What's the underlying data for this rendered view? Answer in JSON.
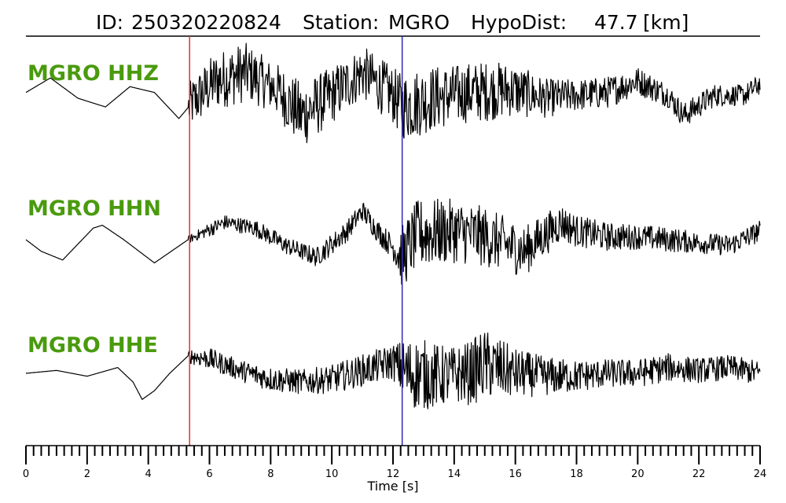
{
  "title": {
    "id_label": "ID:",
    "id": "250320220824",
    "station_label": "Station:",
    "station": "MGRO",
    "hypodist_label": "HypoDist:",
    "hypodist": "47.7",
    "hypodist_unit": "[km]"
  },
  "chart_data": {
    "type": "line",
    "xlabel": "Time [s]",
    "xlim": [
      0,
      24
    ],
    "xticks": [
      0,
      2,
      4,
      6,
      8,
      10,
      12,
      14,
      16,
      18,
      20,
      22,
      24
    ],
    "minor_tick_step": 0.25,
    "p_pick_time": 5.35,
    "s_pick_time": 12.3,
    "p_pick_color": "#e8312a",
    "s_pick_color": "#2b2bb8",
    "label_color": "#4a9a0e",
    "series": [
      {
        "name": "MGRO HHZ",
        "envelope": [
          [
            0,
            0.3
          ],
          [
            1,
            0.2
          ],
          [
            2,
            0.25
          ],
          [
            3,
            0.15
          ],
          [
            4,
            0.1
          ],
          [
            5,
            0.2
          ],
          [
            5.4,
            0.7
          ],
          [
            6,
            0.8
          ],
          [
            7,
            0.85
          ],
          [
            8,
            0.7
          ],
          [
            9,
            0.95
          ],
          [
            10,
            0.8
          ],
          [
            11,
            0.75
          ],
          [
            12,
            0.8
          ],
          [
            12.5,
            1.0
          ],
          [
            13,
            0.95
          ],
          [
            14,
            0.85
          ],
          [
            15,
            0.85
          ],
          [
            16,
            0.75
          ],
          [
            17,
            0.55
          ],
          [
            18,
            0.45
          ],
          [
            19,
            0.45
          ],
          [
            20,
            0.4
          ],
          [
            21,
            0.35
          ],
          [
            22,
            0.35
          ],
          [
            23,
            0.3
          ],
          [
            24,
            0.3
          ]
        ],
        "baseline": [
          [
            0,
            0.2
          ],
          [
            0.8,
            0.7
          ],
          [
            1.7,
            0.0
          ],
          [
            2.6,
            -0.3
          ],
          [
            3.4,
            0.4
          ],
          [
            4.2,
            0.2
          ],
          [
            5,
            -0.7
          ],
          [
            5.4,
            -0.2
          ],
          [
            6.2,
            0.6
          ],
          [
            7.2,
            0.9
          ],
          [
            8.2,
            0.3
          ],
          [
            9,
            -0.6
          ],
          [
            10,
            0.1
          ],
          [
            11,
            0.9
          ],
          [
            12,
            0.1
          ],
          [
            12.3,
            -0.3
          ],
          [
            13.3,
            0.0
          ],
          [
            14.5,
            0.2
          ],
          [
            15.8,
            0.3
          ],
          [
            17,
            0.0
          ],
          [
            18,
            0.1
          ],
          [
            19,
            0.2
          ],
          [
            20,
            0.6
          ],
          [
            21,
            0.1
          ],
          [
            21.5,
            -0.6
          ],
          [
            22.5,
            0.1
          ],
          [
            23.5,
            0.1
          ],
          [
            24,
            0.5
          ]
        ]
      },
      {
        "name": "MGRO HHN",
        "envelope": [
          [
            0,
            0.05
          ],
          [
            5,
            0.05
          ],
          [
            5.3,
            0.1
          ],
          [
            6,
            0.2
          ],
          [
            7,
            0.22
          ],
          [
            8,
            0.25
          ],
          [
            9,
            0.25
          ],
          [
            10,
            0.3
          ],
          [
            11,
            0.3
          ],
          [
            12,
            0.35
          ],
          [
            12.3,
            0.9
          ],
          [
            13,
            1.0
          ],
          [
            14,
            0.9
          ],
          [
            15,
            0.85
          ],
          [
            16,
            0.75
          ],
          [
            17,
            0.6
          ],
          [
            18,
            0.45
          ],
          [
            19,
            0.4
          ],
          [
            20,
            0.35
          ],
          [
            21,
            0.35
          ],
          [
            22,
            0.3
          ],
          [
            23,
            0.3
          ],
          [
            24,
            0.3
          ]
        ],
        "baseline": [
          [
            0,
            0.0
          ],
          [
            0.5,
            -0.4
          ],
          [
            1.2,
            -0.7
          ],
          [
            2.2,
            0.4
          ],
          [
            2.5,
            0.5
          ],
          [
            3.2,
            0.0
          ],
          [
            4.2,
            -0.8
          ],
          [
            5.3,
            0.0
          ],
          [
            6.5,
            0.6
          ],
          [
            7.5,
            0.4
          ],
          [
            8.5,
            -0.2
          ],
          [
            9.5,
            -0.6
          ],
          [
            10.5,
            0.3
          ],
          [
            11,
            1.0
          ],
          [
            11.5,
            0.3
          ],
          [
            12.3,
            -0.6
          ],
          [
            12.8,
            0.2
          ],
          [
            14,
            0.3
          ],
          [
            15,
            0.1
          ],
          [
            16.3,
            -0.4
          ],
          [
            17,
            0.2
          ],
          [
            17.5,
            0.6
          ],
          [
            18,
            0.3
          ],
          [
            19,
            0.1
          ],
          [
            20,
            0.1
          ],
          [
            21,
            0.0
          ],
          [
            22,
            -0.1
          ],
          [
            23,
            -0.2
          ],
          [
            24,
            0.3
          ]
        ]
      },
      {
        "name": "MGRO HHE",
        "envelope": [
          [
            0,
            0.05
          ],
          [
            5,
            0.05
          ],
          [
            5.3,
            0.2
          ],
          [
            6,
            0.3
          ],
          [
            7,
            0.3
          ],
          [
            8,
            0.35
          ],
          [
            9,
            0.35
          ],
          [
            10,
            0.4
          ],
          [
            11,
            0.45
          ],
          [
            12,
            0.5
          ],
          [
            12.5,
            1.0
          ],
          [
            13,
            1.0
          ],
          [
            14,
            0.8
          ],
          [
            15,
            1.0
          ],
          [
            16,
            0.7
          ],
          [
            17,
            0.55
          ],
          [
            18,
            0.45
          ],
          [
            19,
            0.4
          ],
          [
            20,
            0.4
          ],
          [
            21,
            0.4
          ],
          [
            22,
            0.35
          ],
          [
            23,
            0.35
          ],
          [
            24,
            0.35
          ]
        ],
        "baseline": [
          [
            0,
            0.0
          ],
          [
            1,
            0.1
          ],
          [
            2,
            -0.1
          ],
          [
            3,
            0.2
          ],
          [
            3.5,
            -0.3
          ],
          [
            3.8,
            -0.9
          ],
          [
            4.2,
            -0.6
          ],
          [
            4.7,
            0.0
          ],
          [
            5.3,
            0.6
          ],
          [
            6,
            0.5
          ],
          [
            7,
            0.1
          ],
          [
            8,
            -0.2
          ],
          [
            9,
            -0.3
          ],
          [
            10,
            -0.2
          ],
          [
            11,
            0.1
          ],
          [
            12,
            0.4
          ],
          [
            12.5,
            0.0
          ],
          [
            13.5,
            -0.1
          ],
          [
            14.5,
            0.0
          ],
          [
            15,
            0.3
          ],
          [
            16,
            0.0
          ],
          [
            17,
            -0.1
          ],
          [
            18,
            -0.1
          ],
          [
            19,
            0.0
          ],
          [
            20,
            0.0
          ],
          [
            21,
            0.2
          ],
          [
            22,
            0.1
          ],
          [
            23,
            0.2
          ],
          [
            24,
            0.0
          ]
        ]
      }
    ]
  }
}
